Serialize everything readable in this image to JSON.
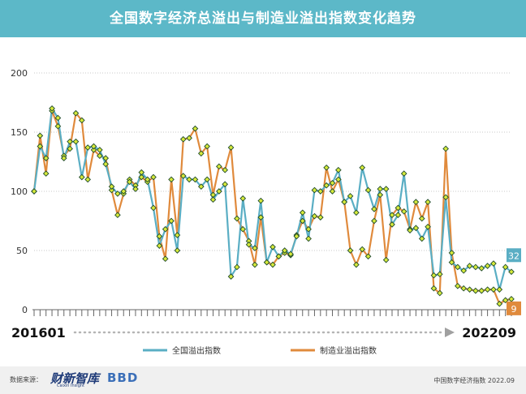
{
  "title": "全国数字经济总溢出与制造业溢出指数变化趋势",
  "footer": {
    "source_label": "数据来源：",
    "logo_text": "财新智库",
    "logo_sub": "Caixin Insight",
    "mark_text": "BBD",
    "right_text": "中国数字经济指数 2022.09"
  },
  "colors": {
    "banner": "#5cb8c8",
    "series_total": "#5aaec4",
    "series_mfg": "#e08a3c",
    "marker_fill": "#d7ea3a",
    "marker_stroke": "#1f4a2c"
  },
  "chart_data": {
    "type": "line",
    "x_start_label": "201601",
    "x_end_label": "202209",
    "x_count": 81,
    "ylim": [
      0,
      200
    ],
    "yticks": [
      0,
      50,
      100,
      150,
      200
    ],
    "grid": "horizontal-dotted",
    "legend_position": "bottom",
    "series": [
      {
        "name": "全国溢出指数",
        "end_label": "32",
        "values": [
          100,
          138,
          128,
          170,
          162,
          128,
          142,
          142,
          112,
          137,
          138,
          135,
          123,
          104,
          98,
          100,
          108,
          102,
          116,
          110,
          86,
          54,
          68,
          75,
          50,
          113,
          110,
          110,
          104,
          110,
          93,
          100,
          106,
          28,
          36,
          94,
          55,
          52,
          92,
          40,
          53,
          45,
          50,
          47,
          62,
          82,
          60,
          101,
          100,
          105,
          107,
          118,
          91,
          96,
          82,
          120,
          101,
          85,
          102,
          102,
          72,
          80,
          115,
          67,
          69,
          60,
          70,
          29,
          30,
          95,
          40,
          36,
          33,
          37,
          36,
          35,
          37,
          39,
          17,
          36,
          32
        ]
      },
      {
        "name": "制造业溢出指数",
        "end_label": "9",
        "values": [
          100,
          147,
          115,
          168,
          155,
          130,
          136,
          166,
          160,
          110,
          135,
          130,
          128,
          101,
          80,
          98,
          110,
          105,
          112,
          108,
          112,
          62,
          43,
          110,
          63,
          144,
          145,
          153,
          132,
          138,
          97,
          121,
          118,
          137,
          77,
          68,
          58,
          38,
          78,
          40,
          38,
          45,
          48,
          46,
          63,
          75,
          68,
          79,
          78,
          120,
          100,
          110,
          91,
          50,
          38,
          51,
          45,
          75,
          97,
          42,
          80,
          86,
          83,
          68,
          91,
          77,
          91,
          18,
          14,
          136,
          48,
          20,
          18,
          17,
          16,
          16,
          17,
          17,
          5,
          8,
          9
        ]
      }
    ]
  }
}
